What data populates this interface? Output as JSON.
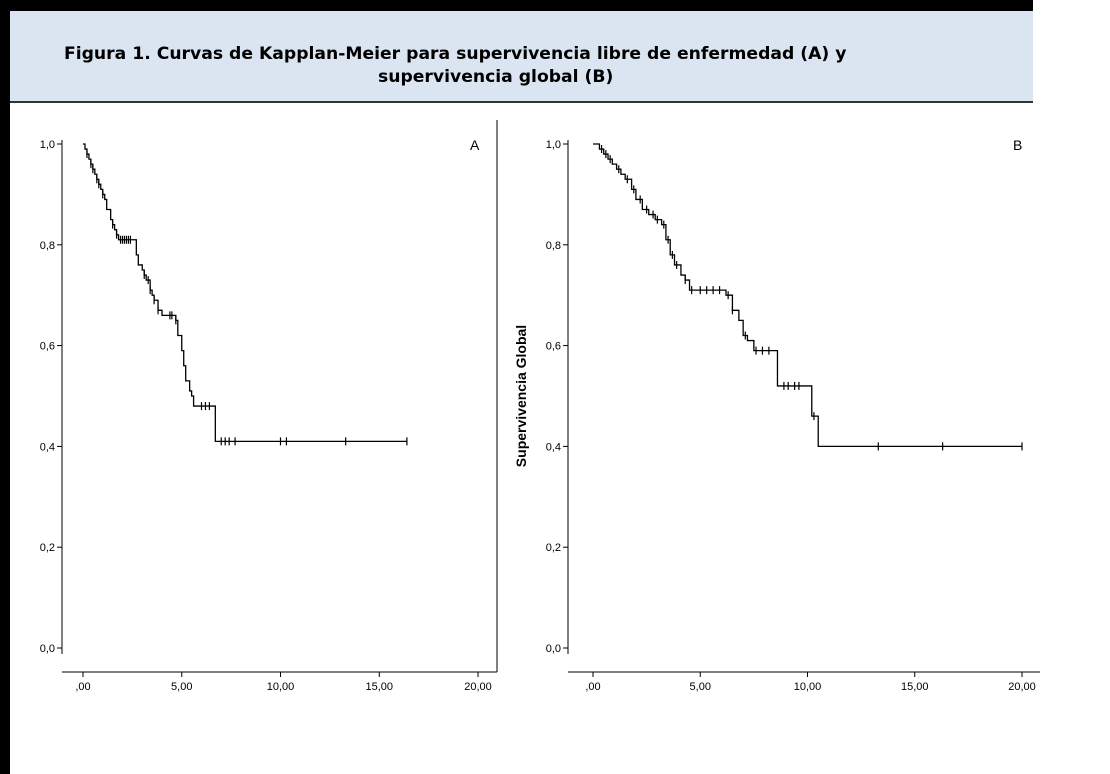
{
  "title": {
    "line1": "Figura 1. Curvas de Kapplan-Meier para supervivencia libre de enfermedad (A) y",
    "line2": "supervivencia global (B)"
  },
  "chart_data": [
    {
      "type": "line",
      "panel_label": "A",
      "ylabel": "",
      "xlim": [
        0,
        20
      ],
      "ylim": [
        0,
        1
      ],
      "x_ticks": [
        0,
        5,
        10,
        15,
        20
      ],
      "x_tick_labels": [
        ",00",
        "5,00",
        "10,00",
        "15,00",
        "20,00"
      ],
      "y_ticks": [
        0,
        0.2,
        0.4,
        0.6,
        0.8,
        1.0
      ],
      "y_tick_labels": [
        "0,0",
        "0,2",
        "0,4",
        "0,6",
        "0,8",
        "1,0"
      ],
      "grid": false,
      "series": [
        {
          "x": [
            0,
            0.1,
            0.2,
            0.3,
            0.4,
            0.5,
            0.6,
            0.7,
            0.8,
            0.9,
            1.0,
            1.1,
            1.2,
            1.4,
            1.5,
            1.6,
            1.7,
            1.8,
            1.9,
            2.0,
            2.5,
            2.7,
            2.8,
            3.0,
            3.1,
            3.2,
            3.4,
            3.5,
            3.6,
            3.8,
            4.0,
            4.4,
            4.6,
            4.7,
            4.8,
            5.0,
            5.1,
            5.2,
            5.4,
            5.5,
            5.6,
            6.0,
            6.4,
            6.7,
            7.0,
            16.4
          ],
          "y": [
            1.0,
            0.99,
            0.98,
            0.97,
            0.96,
            0.95,
            0.94,
            0.93,
            0.92,
            0.91,
            0.9,
            0.89,
            0.87,
            0.85,
            0.84,
            0.83,
            0.82,
            0.81,
            0.81,
            0.81,
            0.81,
            0.78,
            0.76,
            0.75,
            0.74,
            0.73,
            0.71,
            0.7,
            0.69,
            0.67,
            0.66,
            0.66,
            0.66,
            0.65,
            0.62,
            0.59,
            0.56,
            0.53,
            0.51,
            0.5,
            0.48,
            0.48,
            0.48,
            0.41,
            0.41,
            0.41
          ]
        }
      ],
      "censor_x": [
        0.2,
        0.4,
        0.5,
        0.7,
        0.8,
        1.0,
        1.5,
        1.7,
        1.9,
        2.0,
        2.1,
        2.2,
        2.3,
        2.4,
        3.1,
        3.3,
        3.4,
        3.6,
        3.8,
        4.4,
        4.5,
        4.7,
        6.0,
        6.2,
        6.4,
        7.0,
        7.2,
        7.4,
        7.7,
        10.0,
        10.3,
        13.3,
        16.4
      ]
    },
    {
      "type": "line",
      "panel_label": "B",
      "ylabel": "Supervivencia Global",
      "xlim": [
        0,
        20
      ],
      "ylim": [
        0,
        1
      ],
      "x_ticks": [
        0,
        5,
        10,
        15,
        20
      ],
      "x_tick_labels": [
        ",00",
        "5,00",
        "10,00",
        "15,00",
        "20,00"
      ],
      "y_ticks": [
        0,
        0.2,
        0.4,
        0.6,
        0.8,
        1.0
      ],
      "y_tick_labels": [
        "0,0",
        "0,2",
        "0,4",
        "0,6",
        "0,8",
        "1,0"
      ],
      "grid": false,
      "series": [
        {
          "x": [
            0,
            0.3,
            0.5,
            0.7,
            0.9,
            1.1,
            1.3,
            1.5,
            1.8,
            2.0,
            2.3,
            2.6,
            2.9,
            3.2,
            3.4,
            3.6,
            3.8,
            4.1,
            4.3,
            4.5,
            5.0,
            6.2,
            6.5,
            6.8,
            7.0,
            7.2,
            7.5,
            8.0,
            8.6,
            10.0,
            10.2,
            10.5,
            20.0
          ],
          "y": [
            1.0,
            0.99,
            0.98,
            0.97,
            0.96,
            0.95,
            0.94,
            0.93,
            0.91,
            0.89,
            0.87,
            0.86,
            0.85,
            0.84,
            0.81,
            0.78,
            0.76,
            0.74,
            0.73,
            0.71,
            0.71,
            0.7,
            0.67,
            0.65,
            0.62,
            0.61,
            0.59,
            0.59,
            0.52,
            0.52,
            0.46,
            0.4,
            0.4
          ]
        }
      ],
      "censor_x": [
        0.4,
        0.6,
        0.8,
        1.2,
        1.6,
        1.9,
        2.2,
        2.5,
        2.8,
        3.0,
        3.3,
        3.5,
        3.7,
        3.9,
        4.3,
        4.6,
        5.0,
        5.3,
        5.6,
        5.9,
        6.3,
        6.5,
        7.1,
        7.6,
        7.9,
        8.2,
        8.9,
        9.1,
        9.4,
        9.6,
        10.3,
        13.3,
        16.3,
        20.0
      ]
    }
  ]
}
